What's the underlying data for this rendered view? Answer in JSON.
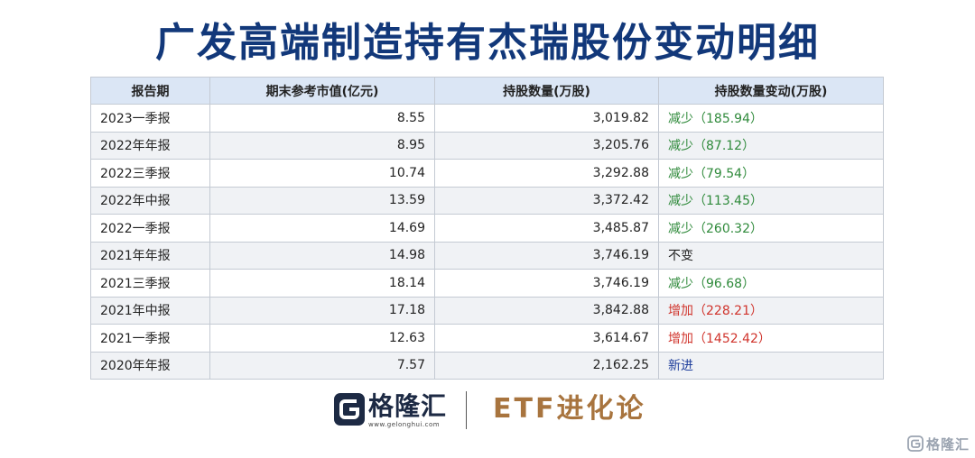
{
  "title": "广发高端制造持有杰瑞股份变动明细",
  "table": {
    "headers": [
      "报告期",
      "期末参考市值(亿元)",
      "持股数量(万股)",
      "持股数量变动(万股)"
    ],
    "rows": [
      {
        "period": "2023一季报",
        "market_value": "8.55",
        "shares": "3,019.82",
        "change": "减少（185.94）",
        "change_type": "decrease"
      },
      {
        "period": "2022年年报",
        "market_value": "8.95",
        "shares": "3,205.76",
        "change": "减少（87.12）",
        "change_type": "decrease"
      },
      {
        "period": "2022三季报",
        "market_value": "10.74",
        "shares": "3,292.88",
        "change": "减少（79.54）",
        "change_type": "decrease"
      },
      {
        "period": "2022年中报",
        "market_value": "13.59",
        "shares": "3,372.42",
        "change": "减少（113.45）",
        "change_type": "decrease"
      },
      {
        "period": "2022一季报",
        "market_value": "14.69",
        "shares": "3,485.87",
        "change": "减少（260.32）",
        "change_type": "decrease"
      },
      {
        "period": "2021年年报",
        "market_value": "14.98",
        "shares": "3,746.19",
        "change": "不变",
        "change_type": "nochange"
      },
      {
        "period": "2021三季报",
        "market_value": "18.14",
        "shares": "3,746.19",
        "change": "减少（96.68）",
        "change_type": "decrease"
      },
      {
        "period": "2021年中报",
        "market_value": "17.18",
        "shares": "3,842.88",
        "change": "增加（228.21）",
        "change_type": "increase"
      },
      {
        "period": "2021一季报",
        "market_value": "12.63",
        "shares": "3,614.67",
        "change": "增加（1452.42）",
        "change_type": "increase"
      },
      {
        "period": "2020年年报",
        "market_value": "7.57",
        "shares": "2,162.25",
        "change": "新进",
        "change_type": "new"
      }
    ]
  },
  "colors": {
    "title": "#12387a",
    "header_bg": "#dbe6f5",
    "decrease": "#2f8a3b",
    "increase": "#d0342c",
    "new": "#1f3f9c",
    "etf_brand": "#a8743e"
  },
  "footer": {
    "gelonghui_icon": "gelonghui-logo-icon",
    "gelonghui_name": "格隆汇",
    "gelonghui_url": "www.gelonghui.com",
    "etf_name": "ETF进化论"
  },
  "watermark": {
    "icon": "gelonghui-logo-icon",
    "text": "格隆汇"
  }
}
